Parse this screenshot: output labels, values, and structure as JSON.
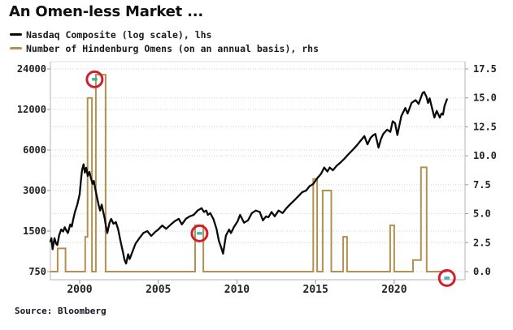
{
  "title": "An Omen-less Market ...",
  "legend": [
    {
      "label": "Nasdaq Composite (log scale), lhs",
      "color": "#0a0a0a"
    },
    {
      "label": "Number of Hindenburg Omens (on an annual basis), rhs",
      "color": "#b2914f"
    }
  ],
  "source": "Source: Bloomberg",
  "colors": {
    "nasdaq_line": "#0a0a0a",
    "omen_line": "#b2914f",
    "annotation_ring": "#d0202e",
    "annotation_mark": "#2ea8a4",
    "gridline": "#cfcfcf",
    "axis": "#b5b5b5",
    "tick": "#999999",
    "tick_label": "#222222"
  },
  "chart_data": {
    "type": "line",
    "title": "An Omen-less Market ...",
    "source": "Bloomberg",
    "grid": "dotted horizontal",
    "legend_position": "top-left",
    "x_axis": {
      "range": [
        1998.14,
        2024.5
      ],
      "ticks": [
        2000,
        2005,
        2010,
        2015,
        2020
      ]
    },
    "left_axis": {
      "title": "Nasdaq Composite (log scale), lhs",
      "scale": "log",
      "ticks": [
        750,
        1500,
        3000,
        6000,
        12000,
        24000
      ],
      "range": [
        750,
        24000
      ]
    },
    "right_axis": {
      "title": "Number of Hindenburg Omens (on an annual basis), rhs",
      "scale": "linear",
      "ticks": [
        0.0,
        2.5,
        5.0,
        7.5,
        10.0,
        12.5,
        15.0,
        17.5
      ],
      "range": [
        0,
        17.5
      ],
      "tick_format": "one_decimal"
    },
    "series": [
      {
        "name": "Nasdaq Composite (log scale), lhs",
        "axis": "left",
        "kind": "line",
        "color": "#0a0a0a",
        "points": [
          [
            1998.14,
            1260
          ],
          [
            1998.2,
            1330
          ],
          [
            1998.28,
            1100
          ],
          [
            1998.4,
            1330
          ],
          [
            1998.5,
            1210
          ],
          [
            1998.58,
            1180
          ],
          [
            1998.7,
            1400
          ],
          [
            1998.82,
            1540
          ],
          [
            1998.95,
            1490
          ],
          [
            1999.05,
            1600
          ],
          [
            1999.15,
            1520
          ],
          [
            1999.25,
            1450
          ],
          [
            1999.4,
            1680
          ],
          [
            1999.5,
            1620
          ],
          [
            1999.6,
            1850
          ],
          [
            1999.7,
            2080
          ],
          [
            1999.85,
            2360
          ],
          [
            2000.0,
            2820
          ],
          [
            2000.08,
            3540
          ],
          [
            2000.15,
            4240
          ],
          [
            2000.25,
            4700
          ],
          [
            2000.33,
            4070
          ],
          [
            2000.42,
            4430
          ],
          [
            2000.52,
            3850
          ],
          [
            2000.62,
            4130
          ],
          [
            2000.72,
            3700
          ],
          [
            2000.82,
            3360
          ],
          [
            2000.9,
            3540
          ],
          [
            2001.0,
            3070
          ],
          [
            2001.1,
            2670
          ],
          [
            2001.2,
            2360
          ],
          [
            2001.3,
            2130
          ],
          [
            2001.4,
            2360
          ],
          [
            2001.5,
            2080
          ],
          [
            2001.6,
            1850
          ],
          [
            2001.68,
            1600
          ],
          [
            2001.76,
            1450
          ],
          [
            2001.9,
            1730
          ],
          [
            2002.0,
            1850
          ],
          [
            2002.15,
            1700
          ],
          [
            2002.3,
            1750
          ],
          [
            2002.45,
            1540
          ],
          [
            2002.6,
            1260
          ],
          [
            2002.75,
            1050
          ],
          [
            2002.85,
            920
          ],
          [
            2002.95,
            860
          ],
          [
            2003.08,
            1010
          ],
          [
            2003.18,
            930
          ],
          [
            2003.35,
            1050
          ],
          [
            2003.55,
            1210
          ],
          [
            2003.8,
            1330
          ],
          [
            2004.05,
            1450
          ],
          [
            2004.3,
            1500
          ],
          [
            2004.55,
            1380
          ],
          [
            2004.8,
            1480
          ],
          [
            2005.0,
            1540
          ],
          [
            2005.25,
            1650
          ],
          [
            2005.5,
            1560
          ],
          [
            2005.8,
            1680
          ],
          [
            2006.05,
            1780
          ],
          [
            2006.3,
            1850
          ],
          [
            2006.5,
            1680
          ],
          [
            2006.75,
            1850
          ],
          [
            2007.0,
            1930
          ],
          [
            2007.25,
            1980
          ],
          [
            2007.5,
            2130
          ],
          [
            2007.75,
            2220
          ],
          [
            2007.9,
            2080
          ],
          [
            2008.05,
            2130
          ],
          [
            2008.15,
            1980
          ],
          [
            2008.3,
            2040
          ],
          [
            2008.5,
            1850
          ],
          [
            2008.7,
            1560
          ],
          [
            2008.85,
            1270
          ],
          [
            2009.0,
            1130
          ],
          [
            2009.12,
            1020
          ],
          [
            2009.3,
            1390
          ],
          [
            2009.5,
            1540
          ],
          [
            2009.62,
            1450
          ],
          [
            2009.8,
            1600
          ],
          [
            2010.05,
            1780
          ],
          [
            2010.2,
            1980
          ],
          [
            2010.45,
            1730
          ],
          [
            2010.7,
            1800
          ],
          [
            2010.95,
            2040
          ],
          [
            2011.2,
            2130
          ],
          [
            2011.45,
            2080
          ],
          [
            2011.65,
            1800
          ],
          [
            2011.85,
            1930
          ],
          [
            2012.0,
            1900
          ],
          [
            2012.2,
            2080
          ],
          [
            2012.4,
            1930
          ],
          [
            2012.65,
            2130
          ],
          [
            2012.9,
            2040
          ],
          [
            2013.15,
            2220
          ],
          [
            2013.4,
            2380
          ],
          [
            2013.65,
            2540
          ],
          [
            2013.9,
            2720
          ],
          [
            2014.15,
            2920
          ],
          [
            2014.4,
            3000
          ],
          [
            2014.6,
            3220
          ],
          [
            2014.85,
            3360
          ],
          [
            2015.1,
            3700
          ],
          [
            2015.35,
            4000
          ],
          [
            2015.55,
            4450
          ],
          [
            2015.75,
            4150
          ],
          [
            2015.9,
            4450
          ],
          [
            2016.1,
            4240
          ],
          [
            2016.35,
            4600
          ],
          [
            2016.6,
            4870
          ],
          [
            2016.85,
            5200
          ],
          [
            2017.1,
            5600
          ],
          [
            2017.35,
            6000
          ],
          [
            2017.6,
            6450
          ],
          [
            2017.85,
            7000
          ],
          [
            2018.1,
            7600
          ],
          [
            2018.3,
            6600
          ],
          [
            2018.5,
            7400
          ],
          [
            2018.65,
            7700
          ],
          [
            2018.8,
            7900
          ],
          [
            2019.0,
            6250
          ],
          [
            2019.15,
            7200
          ],
          [
            2019.3,
            7900
          ],
          [
            2019.55,
            8500
          ],
          [
            2019.75,
            8170
          ],
          [
            2019.9,
            9800
          ],
          [
            2020.05,
            9500
          ],
          [
            2020.2,
            7750
          ],
          [
            2020.45,
            10700
          ],
          [
            2020.7,
            12300
          ],
          [
            2020.85,
            11200
          ],
          [
            2021.1,
            13400
          ],
          [
            2021.35,
            14100
          ],
          [
            2021.55,
            13200
          ],
          [
            2021.8,
            15900
          ],
          [
            2021.9,
            16200
          ],
          [
            2022.05,
            14870
          ],
          [
            2022.15,
            13400
          ],
          [
            2022.25,
            14500
          ],
          [
            2022.4,
            12300
          ],
          [
            2022.55,
            10450
          ],
          [
            2022.7,
            11700
          ],
          [
            2022.9,
            10450
          ],
          [
            2023.0,
            11200
          ],
          [
            2023.1,
            11000
          ],
          [
            2023.2,
            12750
          ],
          [
            2023.35,
            14300
          ]
        ]
      },
      {
        "name": "Number of Hindenburg Omens (on an annual basis), rhs",
        "axis": "right",
        "kind": "step",
        "color": "#b2914f",
        "segments": [
          [
            1998.14,
            1998.6,
            0
          ],
          [
            1998.6,
            1999.1,
            2
          ],
          [
            1999.1,
            2000.35,
            0
          ],
          [
            2000.35,
            2000.5,
            3
          ],
          [
            2000.5,
            2000.78,
            15
          ],
          [
            2000.78,
            2001.03,
            0
          ],
          [
            2001.03,
            2001.65,
            17
          ],
          [
            2001.65,
            2007.34,
            0
          ],
          [
            2007.34,
            2007.86,
            4
          ],
          [
            2007.86,
            2014.85,
            0
          ],
          [
            2014.85,
            2015.1,
            8
          ],
          [
            2015.1,
            2015.45,
            0
          ],
          [
            2015.45,
            2016.0,
            7
          ],
          [
            2016.0,
            2016.75,
            0
          ],
          [
            2016.75,
            2017.0,
            3
          ],
          [
            2017.0,
            2019.74,
            0
          ],
          [
            2019.74,
            2020.0,
            4
          ],
          [
            2020.0,
            2021.19,
            0
          ],
          [
            2021.19,
            2021.7,
            1
          ],
          [
            2021.7,
            2022.06,
            9
          ],
          [
            2022.06,
            2023.35,
            0
          ]
        ],
        "annual_counts": {
          "1998": 2,
          "1999": 0,
          "2000": 15,
          "2001": 17,
          "2002": 0,
          "2003": 0,
          "2004": 0,
          "2005": 0,
          "2006": 0,
          "2007": 4,
          "2008": 0,
          "2009": 0,
          "2010": 0,
          "2011": 0,
          "2012": 0,
          "2013": 0,
          "2014": 0,
          "2015": 8,
          "2016": 7,
          "2017": 3,
          "2018": 0,
          "2019": 0,
          "2020": 4,
          "2021": 1,
          "2022": 9,
          "2023": 0
        }
      }
    ],
    "annotations": [
      {
        "type": "circle",
        "axis": "right",
        "year": 2000.95,
        "value": 16.6,
        "note": "peak omen cluster circled"
      },
      {
        "type": "circle",
        "axis": "right",
        "year": 2007.62,
        "value": 3.3,
        "note": "2007 omen cluster circled"
      },
      {
        "type": "circle",
        "axis": "right",
        "year": 2023.35,
        "value": -0.55,
        "note": "zero omens at end circled"
      }
    ]
  }
}
